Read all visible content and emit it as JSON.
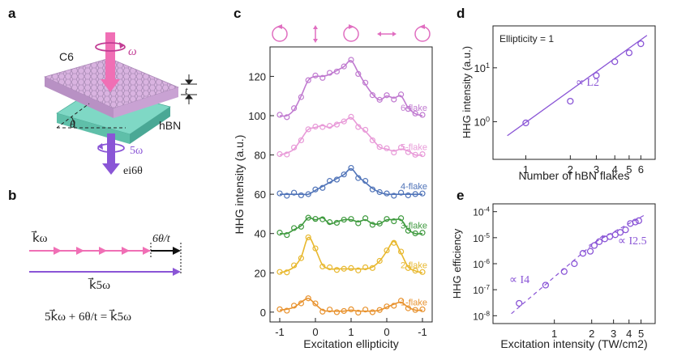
{
  "panels": {
    "a": "a",
    "b": "b",
    "c": "c",
    "d": "d",
    "e": "e"
  },
  "panel_a": {
    "c6": "C6",
    "omega": "ω",
    "t": "t",
    "theta": "θ",
    "hbn": "hBN",
    "five_omega": "5ω",
    "phase": "ei6θ",
    "colors": {
      "c6_top": "#d9b3e0",
      "hbn_top": "#7fd8c5",
      "pump": "#f06fb5",
      "output": "#8a55d6"
    }
  },
  "panel_b": {
    "k_omega": "k⃗ω",
    "six_theta_t": "6θ/t",
    "k_5omega": "k⃗5ω",
    "equation": "5k⃗ω + 6θ/t = k⃗5ω",
    "colors": {
      "k_omega": "#f06fb5",
      "k_5omega": "#8a55d6"
    }
  },
  "chart_data": [
    {
      "id": "c",
      "type": "line",
      "xlabel": "Excitation ellipticity",
      "ylabel": "HHG intensity (a.u.)",
      "x_ticks": [
        "-1",
        "0",
        "1",
        "0",
        "-1"
      ],
      "x_range": [
        0,
        4
      ],
      "ylim": [
        -5,
        135
      ],
      "y_ticks": [
        0,
        20,
        40,
        60,
        80,
        100,
        120
      ],
      "top_polarization_icons": [
        "circle-ccw",
        "vertical-linear",
        "circle-cw",
        "horizontal-linear",
        "circle-ccw"
      ],
      "series": [
        {
          "name": "1-flake",
          "color": "#e8922e",
          "offset": 0,
          "x": [
            0,
            0.2,
            0.4,
            0.6,
            0.8,
            1.0,
            1.2,
            1.4,
            1.6,
            1.8,
            2.0,
            2.2,
            2.4,
            2.6,
            2.8,
            3.0,
            3.2,
            3.4,
            3.6,
            3.8,
            4.0
          ],
          "y": [
            1,
            1.5,
            2.5,
            5,
            7,
            4,
            1,
            0.5,
            0.5,
            0.5,
            1,
            0.5,
            0.5,
            0.5,
            1,
            2.5,
            4,
            5,
            2.5,
            1,
            1
          ]
        },
        {
          "name": "2-flake",
          "color": "#e8b82e",
          "offset": 0,
          "x": [
            0,
            0.2,
            0.4,
            0.6,
            0.8,
            1.0,
            1.2,
            1.4,
            1.6,
            1.8,
            2.0,
            2.2,
            2.4,
            2.6,
            2.8,
            3.0,
            3.2,
            3.4,
            3.6,
            3.8,
            4.0
          ],
          "y": [
            20,
            21,
            23,
            28,
            38,
            32,
            24,
            22,
            22,
            22,
            22,
            22,
            22,
            23,
            26,
            31,
            36,
            30,
            23,
            21,
            20
          ]
        },
        {
          "name": "3-flake",
          "color": "#3f9a3f",
          "offset": 0,
          "x": [
            0,
            0.2,
            0.4,
            0.6,
            0.8,
            1.0,
            1.2,
            1.4,
            1.6,
            1.8,
            2.0,
            2.2,
            2.4,
            2.6,
            2.8,
            3.0,
            3.2,
            3.4,
            3.6,
            3.8,
            4.0
          ],
          "y": [
            40,
            40,
            42,
            44,
            48,
            47,
            48,
            45,
            46,
            47,
            47,
            46,
            47,
            45,
            45,
            47,
            47,
            47,
            42,
            40,
            40
          ]
        },
        {
          "name": "4-flake",
          "color": "#4f73b8",
          "offset": 0,
          "x": [
            0,
            0.2,
            0.4,
            0.6,
            0.8,
            1.0,
            1.2,
            1.4,
            1.6,
            1.8,
            2.0,
            2.2,
            2.4,
            2.6,
            2.8,
            3.0,
            3.2,
            3.4,
            3.6,
            3.8,
            4.0
          ],
          "y": [
            60,
            60,
            60,
            60,
            60,
            62,
            64,
            66,
            68,
            70,
            73,
            69,
            66,
            63,
            61,
            60,
            60,
            60,
            60,
            60,
            60
          ]
        },
        {
          "name": "5-flake",
          "color": "#e89ad8",
          "offset": 0,
          "x": [
            0,
            0.2,
            0.4,
            0.6,
            0.8,
            1.0,
            1.2,
            1.4,
            1.6,
            1.8,
            2.0,
            2.2,
            2.4,
            2.6,
            2.8,
            3.0,
            3.2,
            3.4,
            3.6,
            3.8,
            4.0
          ],
          "y": [
            80,
            81,
            83,
            88,
            93,
            94,
            95,
            94,
            96,
            97,
            99,
            95,
            92,
            88,
            84,
            83,
            82,
            83,
            82,
            80,
            80
          ]
        },
        {
          "name": "6-flake",
          "color": "#c07ad0",
          "offset": 0,
          "x": [
            0,
            0.2,
            0.4,
            0.6,
            0.8,
            1.0,
            1.2,
            1.4,
            1.6,
            1.8,
            2.0,
            2.2,
            2.4,
            2.6,
            2.8,
            3.0,
            3.2,
            3.4,
            3.6,
            3.8,
            4.0
          ],
          "y": [
            100,
            100,
            103,
            110,
            118,
            120,
            120,
            121,
            123,
            125,
            128,
            122,
            116,
            111,
            108,
            110,
            109,
            110,
            104,
            101,
            100
          ]
        }
      ]
    },
    {
      "id": "d",
      "type": "scatter",
      "annotation": "Ellipticity = 1",
      "fit_label": "∝ L2",
      "xlabel": "Number of hBN flakes",
      "ylabel": "HHG intensity (a.u.)",
      "log_x": true,
      "log_y": true,
      "xlim": [
        0.6,
        7.5
      ],
      "ylim": [
        0.2,
        60
      ],
      "x_ticks": [
        "1",
        "2",
        "3",
        "4",
        "5",
        "6"
      ],
      "y_ticks": [
        "100",
        "101"
      ],
      "color": "#8a55d6",
      "x": [
        1,
        2,
        3,
        4,
        5,
        6
      ],
      "y": [
        0.95,
        2.4,
        7.2,
        13,
        19,
        28
      ],
      "fit": {
        "x": [
          0.75,
          6.6
        ],
        "y": [
          0.55,
          40
        ]
      }
    },
    {
      "id": "e",
      "type": "scatter",
      "xlabel": "Excitation intensity (TW/cm2)",
      "ylabel": "HHG efficiency",
      "log_x": true,
      "log_y": true,
      "xlim": [
        0.32,
        6.5
      ],
      "ylim": [
        5e-09,
        0.0002
      ],
      "x_ticks": [
        "1",
        "2",
        "3",
        "4",
        "5"
      ],
      "y_ticks": [
        "10-8",
        "10-7",
        "10-6",
        "10-5",
        "10-4"
      ],
      "color": "#8a55d6",
      "labels": {
        "low": "∝ I4",
        "high": "∝ I2.5"
      },
      "x": [
        0.52,
        0.85,
        1.2,
        1.45,
        1.7,
        1.95,
        2.1,
        2.3,
        2.55,
        2.8,
        3.1,
        3.4,
        3.75,
        4.1,
        4.5,
        4.8
      ],
      "y": [
        3e-08,
        1.5e-07,
        5e-07,
        1e-06,
        2.5e-06,
        3e-06,
        5e-06,
        7e-06,
        9e-06,
        1.1e-05,
        1.3e-05,
        1.6e-05,
        2e-05,
        3.5e-05,
        4e-05,
        4.5e-05
      ],
      "fit_low": {
        "x": [
          0.45,
          2.6
        ],
        "y": [
          1.2e-08,
          1.5e-05
        ]
      },
      "fit_high": {
        "x": [
          1.9,
          5.5
        ],
        "y": [
          5e-06,
          8e-05
        ]
      }
    }
  ]
}
